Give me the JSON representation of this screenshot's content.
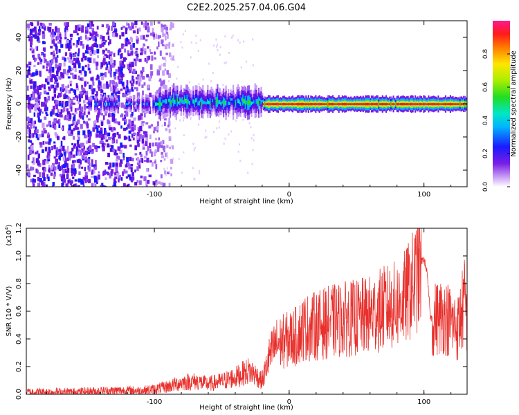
{
  "title": "C2E2.2025.257.04.06.G04",
  "chart_data": [
    {
      "type": "heatmap",
      "panel": "spectrogram",
      "xlabel": "Height of straight line (km)",
      "ylabel": "Frequency (Hz)",
      "xlim": [
        -195,
        132
      ],
      "ylim": [
        -50,
        50
      ],
      "xticks": [
        -100,
        0,
        100
      ],
      "xtick_labels": [
        "-100",
        "0",
        "100"
      ],
      "yticks": [
        -40,
        -20,
        0,
        20,
        40
      ],
      "ytick_labels": [
        "-40",
        "-20",
        "0",
        "20",
        "40"
      ],
      "colorbar": {
        "label": "Normalized spectral amplitude",
        "range": [
          0,
          1
        ],
        "ticks": [
          0.0,
          0.2,
          0.4,
          0.6,
          0.8
        ],
        "tick_labels": [
          "0.0",
          "0.2",
          "0.4",
          "0.6",
          "0.8"
        ],
        "colormap": "rainbow (white-violet-blue-cyan-green-yellow-red-magenta)"
      },
      "features": {
        "noise_region_x": [
          -195,
          -95
        ],
        "signal_band_center_freq_hz": 0,
        "signal_start_x": -150,
        "strong_signal_x": [
          -20,
          110
        ]
      }
    },
    {
      "type": "line",
      "panel": "snr",
      "xlabel": "Height of straight line (km)",
      "ylabel": "SNR (10 * V/V)",
      "scale_label": "(x10",
      "scale_exponent": "4",
      "scale_close": ")",
      "xlim": [
        -195,
        132
      ],
      "ylim": [
        0,
        1.2
      ],
      "xticks": [
        -100,
        0,
        100
      ],
      "xtick_labels": [
        "-100",
        "0",
        "100"
      ],
      "yticks": [
        0.0,
        0.2,
        0.4,
        0.6,
        0.8,
        1.0,
        1.2
      ],
      "ytick_labels": [
        "0.0",
        "0.2",
        "0.4",
        "0.6",
        "0.8",
        "1.0",
        "1.2"
      ],
      "color": "#e8302c",
      "series": [
        {
          "name": "SNR",
          "x": [
            -195,
            -160,
            -130,
            -110,
            -100,
            -90,
            -80,
            -70,
            -60,
            -50,
            -40,
            -30,
            -25,
            -20,
            -15,
            -10,
            -5,
            0,
            5,
            10,
            20,
            30,
            40,
            50,
            60,
            70,
            80,
            85,
            90,
            95,
            98,
            100,
            102,
            105,
            110,
            115,
            120,
            125,
            130,
            132
          ],
          "y": [
            0.02,
            0.02,
            0.03,
            0.03,
            0.04,
            0.06,
            0.09,
            0.1,
            0.08,
            0.1,
            0.13,
            0.18,
            0.15,
            0.1,
            0.28,
            0.38,
            0.4,
            0.42,
            0.44,
            0.5,
            0.52,
            0.55,
            0.57,
            0.58,
            0.6,
            0.65,
            0.68,
            0.72,
            0.8,
            0.9,
            0.96,
            0.98,
            0.9,
            0.55,
            0.58,
            0.6,
            0.55,
            0.5,
            0.7,
            0.6
          ]
        }
      ]
    }
  ]
}
